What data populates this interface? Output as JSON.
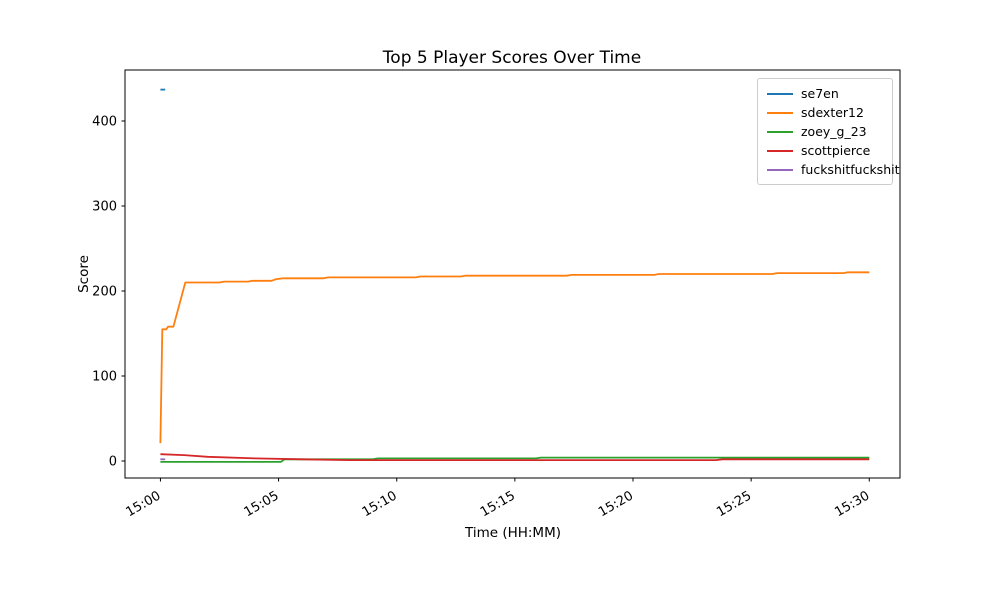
{
  "chart_data": {
    "type": "line",
    "title": "Top 5 Player Scores Over Time",
    "xlabel": "Time (HH:MM)",
    "ylabel": "Score",
    "x_unit": "minutes after 15:00",
    "x_tick_labels": [
      "15:00",
      "15:05",
      "15:10",
      "15:15",
      "15:20",
      "15:25",
      "15:30"
    ],
    "x_tick_minutes": [
      0,
      5,
      10,
      15,
      20,
      25,
      30
    ],
    "x_tick_rotation_deg": 30,
    "y_ticks": [
      0,
      100,
      200,
      300,
      400
    ],
    "xlim_minutes": [
      -1.5,
      31.3
    ],
    "ylim": [
      -20,
      460
    ],
    "grid": false,
    "legend_position": "upper right",
    "series": [
      {
        "name": "se7en",
        "color": "#1f77b4",
        "points": [
          [
            0,
            437
          ],
          [
            0.2,
            437
          ]
        ]
      },
      {
        "name": "sdexter12",
        "color": "#ff7f0e",
        "points": [
          [
            0,
            21
          ],
          [
            0.08,
            155
          ],
          [
            0.25,
            155
          ],
          [
            0.32,
            158
          ],
          [
            0.55,
            158
          ],
          [
            1.05,
            210
          ],
          [
            2.5,
            210
          ],
          [
            2.7,
            211
          ],
          [
            3.7,
            211
          ],
          [
            3.9,
            212
          ],
          [
            4.7,
            212
          ],
          [
            4.9,
            214
          ],
          [
            5.2,
            215
          ],
          [
            6.9,
            215
          ],
          [
            7.1,
            216
          ],
          [
            10.8,
            216
          ],
          [
            11.0,
            217
          ],
          [
            12.7,
            217
          ],
          [
            12.9,
            218
          ],
          [
            17.2,
            218
          ],
          [
            17.4,
            219
          ],
          [
            20.9,
            219
          ],
          [
            21.1,
            220
          ],
          [
            25.9,
            220
          ],
          [
            26.1,
            221
          ],
          [
            28.9,
            221
          ],
          [
            29.1,
            222
          ],
          [
            30,
            222
          ]
        ]
      },
      {
        "name": "zoey_g_23",
        "color": "#2ca02c",
        "points": [
          [
            0,
            -1
          ],
          [
            5.1,
            -1
          ],
          [
            5.25,
            2
          ],
          [
            9.0,
            2
          ],
          [
            9.2,
            3
          ],
          [
            15.9,
            3
          ],
          [
            16.1,
            4
          ],
          [
            30,
            4
          ]
        ]
      },
      {
        "name": "scottpierce",
        "color": "#d62728",
        "points": [
          [
            0,
            8
          ],
          [
            1,
            7
          ],
          [
            2,
            5
          ],
          [
            4,
            3
          ],
          [
            6,
            2
          ],
          [
            8,
            1
          ],
          [
            23.5,
            1
          ],
          [
            23.8,
            2
          ],
          [
            30,
            2
          ]
        ]
      },
      {
        "name": "fuckshitfuckshit",
        "color": "#9467bd",
        "points": [
          [
            0,
            2
          ],
          [
            0.2,
            2
          ]
        ]
      }
    ]
  }
}
